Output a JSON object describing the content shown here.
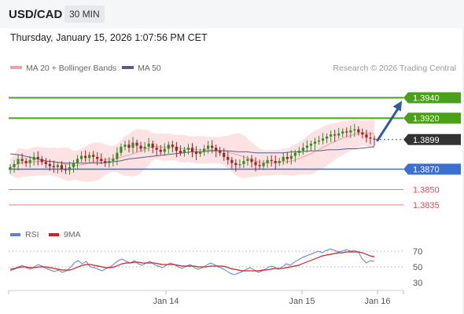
{
  "header": {
    "symbol": "USD/CAD",
    "interval": "30 MIN"
  },
  "timestamp": "Thursday, January 15, 2026 1:07:56 PM CET",
  "legend": {
    "ma20": "MA 20 + Bollinger Bands",
    "ma50": "MA 50",
    "credit": "Research © 2026 Trading Central"
  },
  "colors": {
    "green": "#4aa018",
    "blue": "#3b6fd0",
    "red": "#e05050",
    "dark": "#333333",
    "ma20": "#f0a0a0",
    "ma50": "#506088",
    "band": "#fbd8d8",
    "arrow": "#2e5aa8",
    "rsi": "#5b80d8",
    "rsi_ma": "#d02020"
  },
  "chart_data": [
    {
      "type": "candlestick",
      "y_range": [
        1.3815,
        1.3965
      ],
      "x_ticks": [
        "Jan 14",
        "Jan 15",
        "Jan 16"
      ],
      "levels": [
        {
          "value": 1.394,
          "label": "1.3940",
          "style": "resistance"
        },
        {
          "value": 1.392,
          "label": "1.3920",
          "style": "resistance"
        },
        {
          "value": 1.3899,
          "label": "1.3899",
          "style": "last"
        },
        {
          "value": 1.387,
          "label": "1.3870",
          "style": "pivot"
        },
        {
          "value": 1.385,
          "label": "1.3850",
          "style": "support"
        },
        {
          "value": 1.3835,
          "label": "1.3835",
          "style": "support"
        }
      ],
      "close_path": [
        1.3872,
        1.3875,
        1.388,
        1.3878,
        1.3876,
        1.3879,
        1.3882,
        1.388,
        1.3877,
        1.3875,
        1.3873,
        1.3872,
        1.3874,
        1.387,
        1.3869,
        1.3872,
        1.3876,
        1.388,
        1.3883,
        1.3881,
        1.3884,
        1.3882,
        1.388,
        1.3878,
        1.3876,
        1.3878,
        1.388,
        1.3886,
        1.3892,
        1.3894,
        1.3891,
        1.3896,
        1.3893,
        1.389,
        1.3892,
        1.3895,
        1.3891,
        1.3889,
        1.3887,
        1.389,
        1.3894,
        1.3892,
        1.3888,
        1.3886,
        1.3889,
        1.3891,
        1.3887,
        1.3885,
        1.3887,
        1.389,
        1.3893,
        1.3891,
        1.3888,
        1.3886,
        1.3882,
        1.3879,
        1.3876,
        1.3874,
        1.3875,
        1.3878,
        1.388,
        1.3877,
        1.3874,
        1.3873,
        1.3876,
        1.3879,
        1.3878,
        1.3876,
        1.3878,
        1.3882,
        1.388,
        1.3883,
        1.3886,
        1.3888,
        1.3891,
        1.3893,
        1.3895,
        1.3897,
        1.3898,
        1.39,
        1.3902,
        1.3904,
        1.3903,
        1.3905,
        1.3907,
        1.3906,
        1.3908,
        1.3909,
        1.3906,
        1.3904,
        1.3901,
        1.39,
        1.3899
      ],
      "ma50_path": [
        1.3885,
        1.3884,
        1.3882,
        1.388,
        1.3878,
        1.3877,
        1.3876,
        1.3876,
        1.3876,
        1.3876,
        1.3876,
        1.3877,
        1.3878,
        1.388,
        1.3881,
        1.3882,
        1.3883,
        1.3884,
        1.3885,
        1.3886,
        1.3887,
        1.3887,
        1.3888,
        1.3888,
        1.3888,
        1.3887,
        1.3887,
        1.3886,
        1.3886,
        1.3886,
        1.3886,
        1.3887,
        1.3887,
        1.3888,
        1.3888,
        1.3889,
        1.3889,
        1.389,
        1.389,
        1.3891,
        1.3892
      ],
      "forecast_arrow": {
        "from": 1.3899,
        "to": 1.394
      }
    },
    {
      "type": "line",
      "legend": [
        "RSI",
        "9MA"
      ],
      "y_ticks": [
        70,
        50,
        30
      ],
      "y_range": [
        20,
        80
      ],
      "rsi": [
        45,
        47,
        50,
        52,
        49,
        47,
        50,
        53,
        51,
        48,
        46,
        44,
        46,
        43,
        45,
        49,
        55,
        58,
        54,
        57,
        50,
        49,
        47,
        45,
        48,
        50,
        54,
        58,
        60,
        57,
        55,
        58,
        54,
        52,
        55,
        57,
        53,
        51,
        49,
        52,
        55,
        53,
        50,
        48,
        51,
        53,
        49,
        47,
        49,
        52,
        55,
        53,
        50,
        48,
        45,
        42,
        40,
        42,
        44,
        47,
        49,
        46,
        43,
        45,
        48,
        51,
        50,
        47,
        50,
        54,
        52,
        56,
        59,
        62,
        64,
        66,
        68,
        70,
        68,
        71,
        73,
        71,
        69,
        70,
        72,
        70,
        71,
        69,
        60,
        55,
        58,
        57
      ],
      "rsi_ma": [
        47,
        48,
        49,
        50,
        50,
        49,
        49,
        50,
        50,
        50,
        49,
        48,
        47,
        46,
        46,
        46,
        48,
        50,
        52,
        53,
        53,
        52,
        51,
        50,
        49,
        49,
        50,
        52,
        54,
        55,
        55,
        56,
        56,
        55,
        55,
        55,
        55,
        54,
        53,
        53,
        53,
        53,
        52,
        51,
        51,
        51,
        51,
        50,
        50,
        50,
        51,
        51,
        51,
        51,
        50,
        48,
        47,
        46,
        45,
        45,
        45,
        45,
        45,
        46,
        46,
        47,
        48,
        48,
        48,
        49,
        50,
        51,
        52,
        54,
        56,
        58,
        60,
        62,
        64,
        65,
        66,
        67,
        68,
        68,
        69,
        69,
        69,
        69,
        68,
        66,
        64,
        63
      ]
    }
  ]
}
